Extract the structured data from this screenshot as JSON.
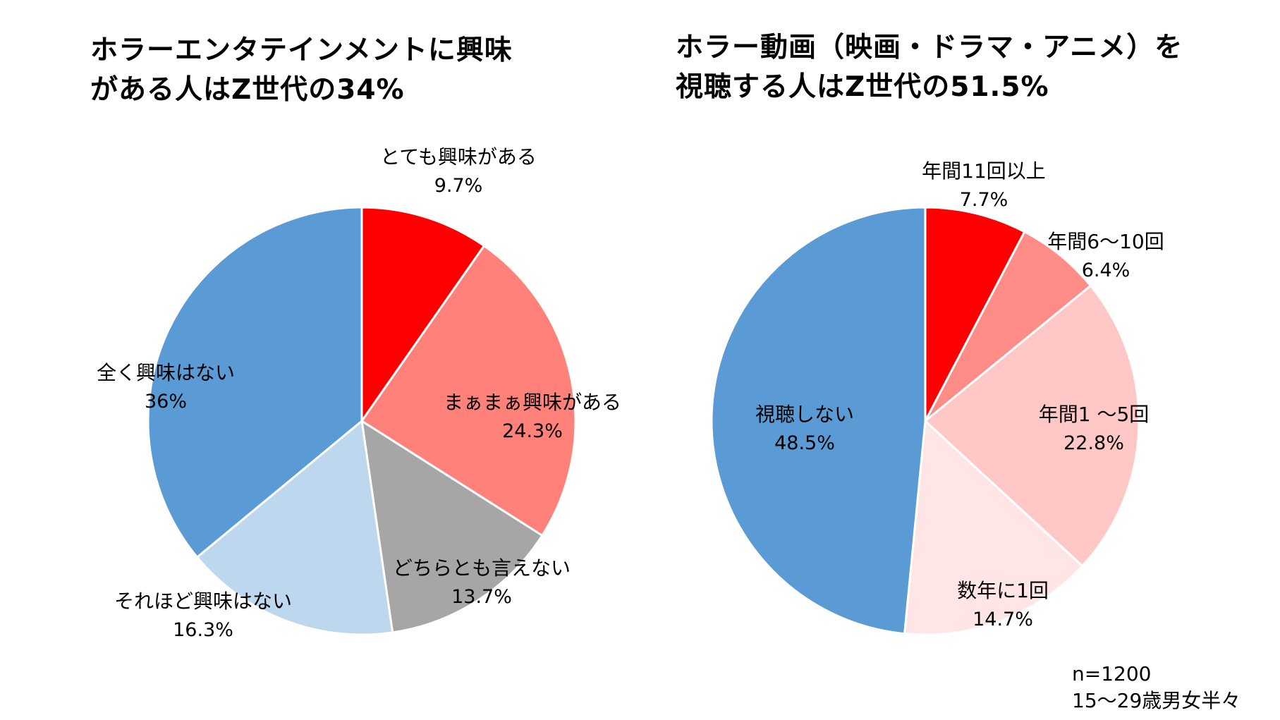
{
  "chart_data": [
    {
      "type": "pie",
      "title_lines": [
        "ホラーエンタテインメントに興味",
        "がある人はZ世代の34%"
      ],
      "start": "top",
      "direction": "clockwise",
      "slices": [
        {
          "label": "とても興味がある",
          "value": 9.7,
          "value_label": "9.7%",
          "color": "#FF0000"
        },
        {
          "label": "まぁまぁ興味がある",
          "value": 24.3,
          "value_label": "24.3%",
          "color": "#FF817A"
        },
        {
          "label": "どちらとも言えない",
          "value": 13.7,
          "value_label": "13.7%",
          "color": "#A6A6A6"
        },
        {
          "label": "それほど興味はない",
          "value": 16.3,
          "value_label": "16.3%",
          "color": "#BDD7EE"
        },
        {
          "label": "全く興味はない",
          "value": 36,
          "value_label": "36%",
          "color": "#5B9BD5"
        }
      ]
    },
    {
      "type": "pie",
      "title_lines": [
        "ホラー動画（映画・ドラマ・アニメ）を",
        "視聴する人はZ世代の51.5%"
      ],
      "start": "top",
      "direction": "clockwise",
      "slices": [
        {
          "label": "年間11回以上",
          "value": 7.7,
          "value_label": "7.7%",
          "color": "#FF0000"
        },
        {
          "label": "年間6～10回",
          "value": 6.4,
          "value_label": "6.4%",
          "color": "#FF8C86"
        },
        {
          "label": "年間1 ～5回",
          "value": 22.8,
          "value_label": "22.8%",
          "color": "#FFC7C5"
        },
        {
          "label": "数年に1回",
          "value": 14.7,
          "value_label": "14.7%",
          "color": "#FFE5E5"
        },
        {
          "label": "視聴しない",
          "value": 48.5,
          "value_label": "48.5%",
          "color": "#5B9BD5"
        }
      ]
    }
  ],
  "note": {
    "sample_size": "n=1200",
    "population": "15～29歳男女半々"
  }
}
